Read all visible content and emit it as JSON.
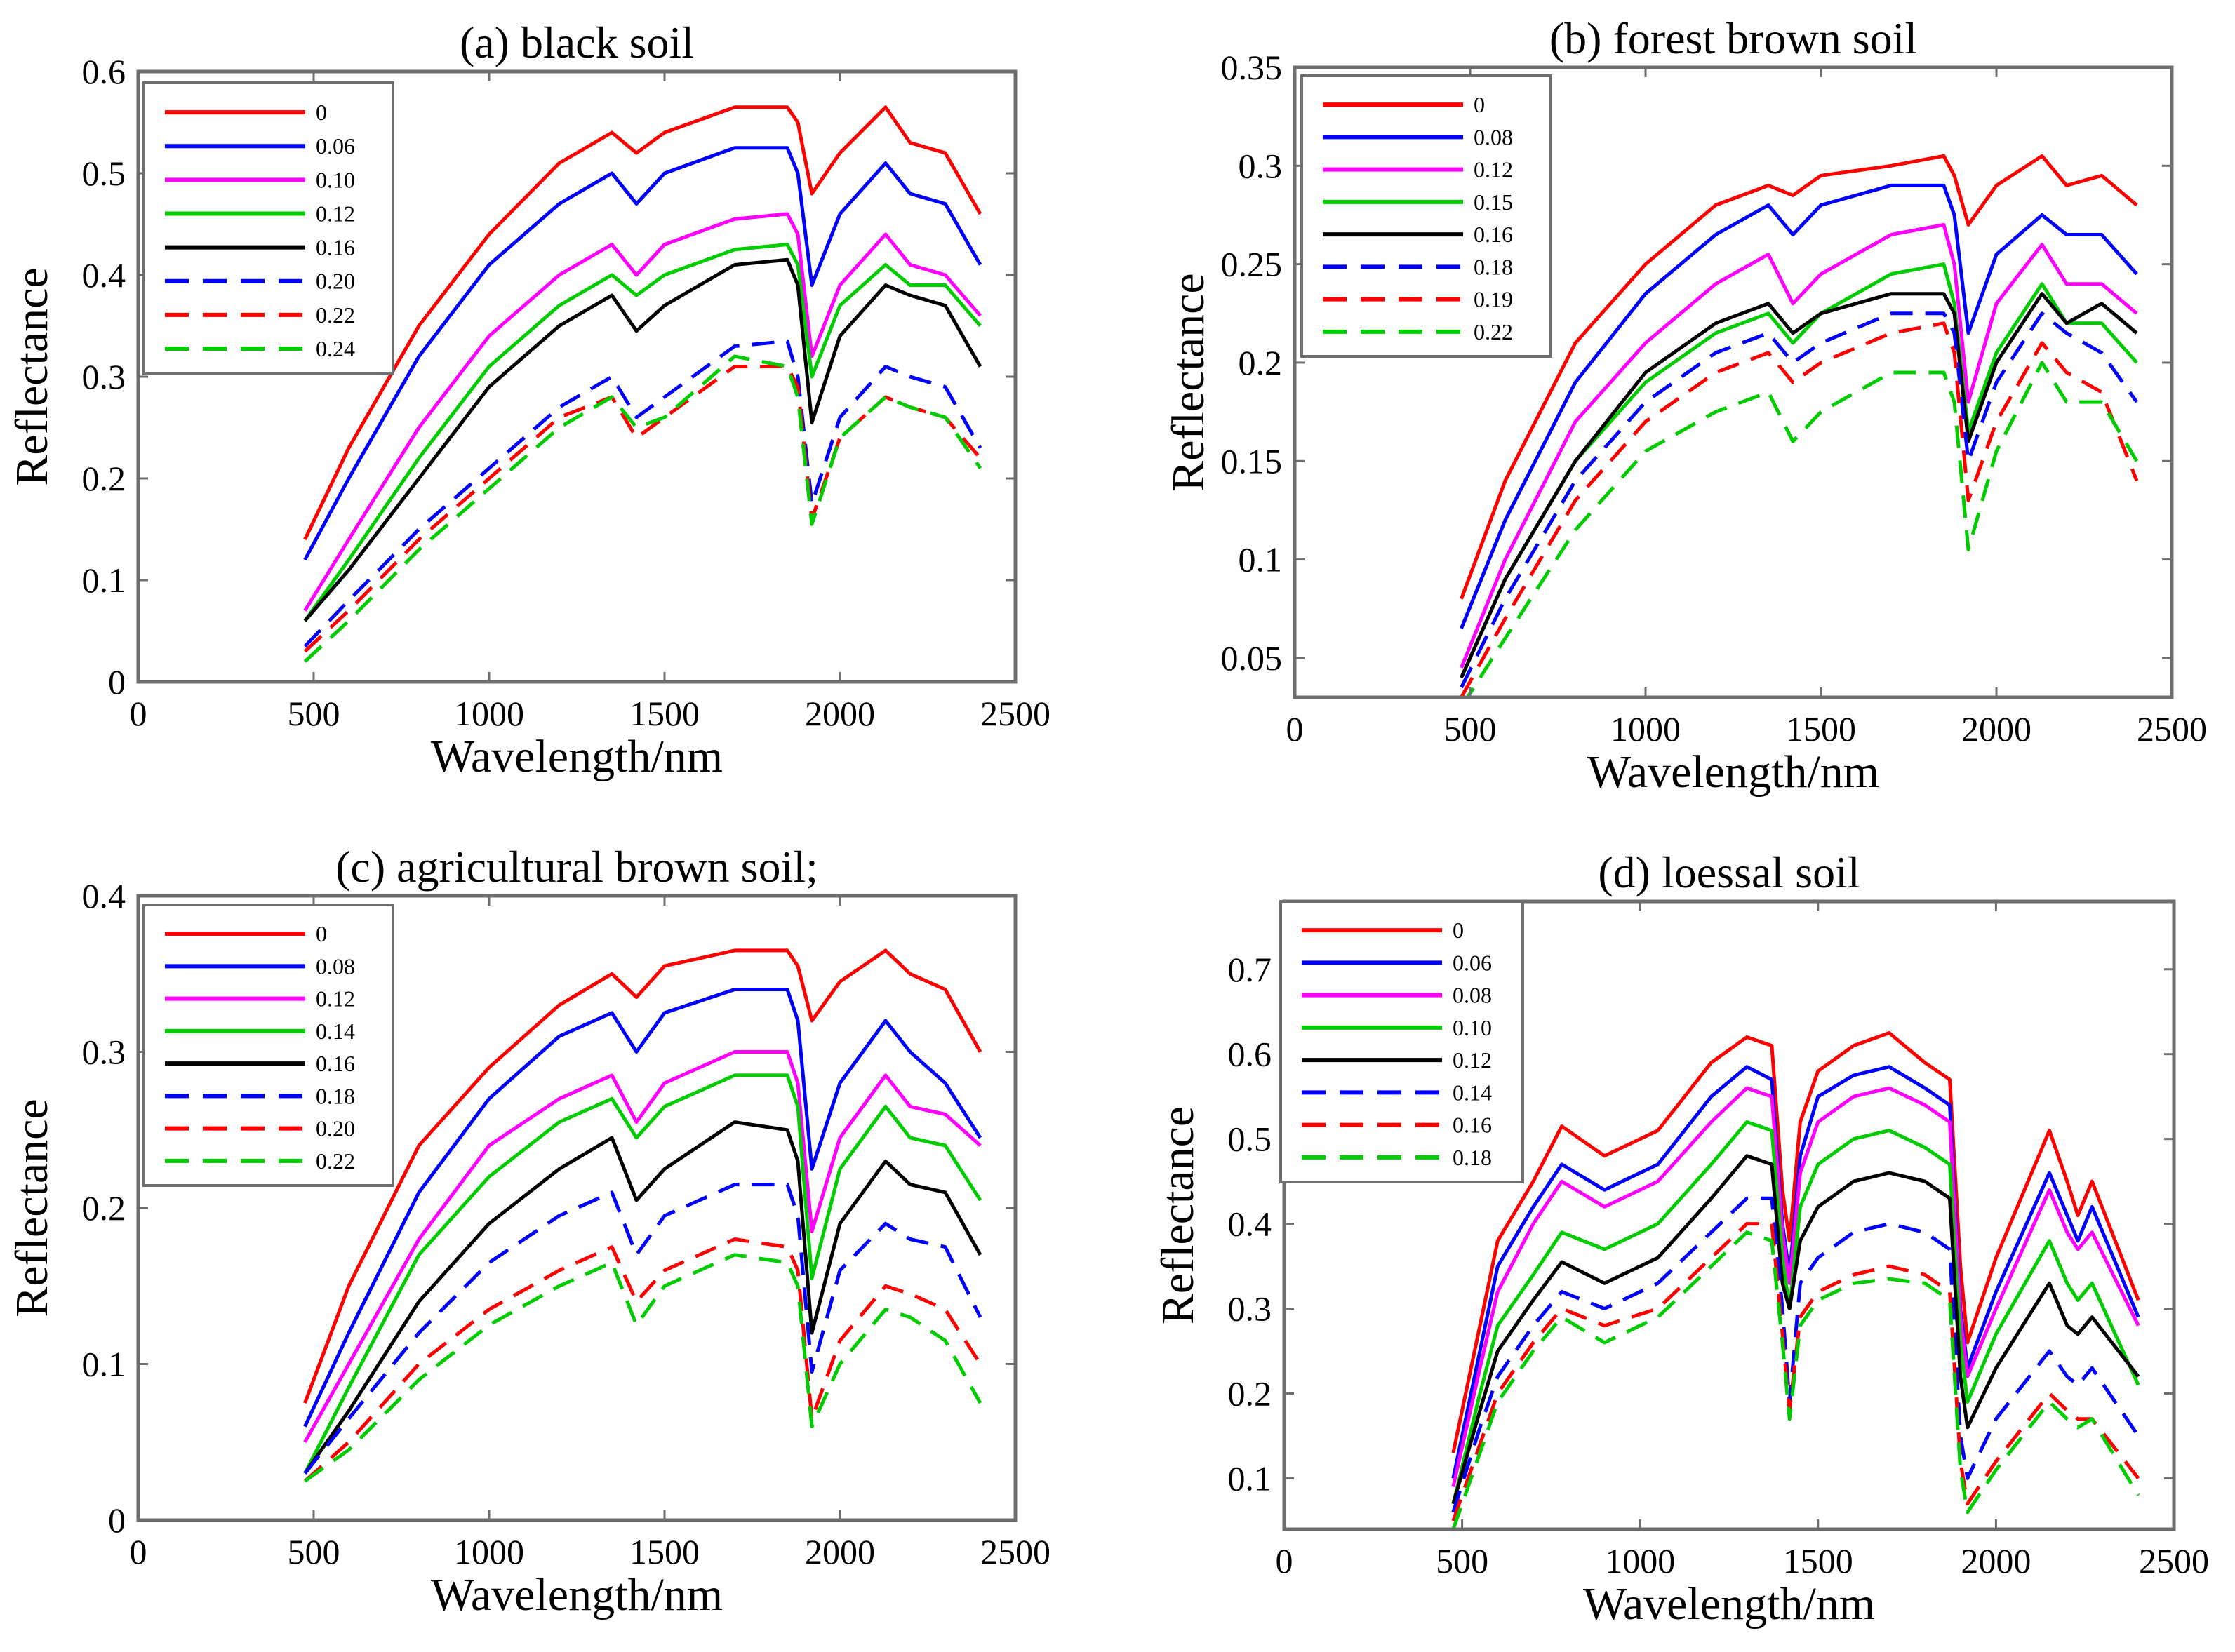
{
  "chart_data": [
    {
      "type": "line",
      "title": "(a) black soil",
      "xlabel": "Wavelength/nm",
      "ylabel": "Reflectance",
      "xlim": [
        0,
        2500
      ],
      "ylim": [
        0,
        0.6
      ],
      "xticks": [
        0,
        500,
        1000,
        1500,
        2000,
        2500
      ],
      "xtick_labels": [
        "0",
        "500",
        "1000",
        "1500",
        "2000",
        "2500"
      ],
      "yticks": [
        0,
        0.1,
        0.2,
        0.3,
        0.4,
        0.5,
        0.6
      ],
      "ytick_labels": [
        "0",
        "0.1",
        "0.2",
        "0.3",
        "0.4",
        "0.5",
        "0.6"
      ],
      "legend_position": "top-left",
      "x": [
        475,
        600,
        800,
        1000,
        1200,
        1350,
        1420,
        1500,
        1700,
        1850,
        1880,
        1920,
        2000,
        2130,
        2200,
        2300,
        2400
      ],
      "series": [
        {
          "name": "0",
          "color": "#ff0000",
          "style": "solid",
          "values": [
            0.14,
            0.23,
            0.35,
            0.44,
            0.51,
            0.54,
            0.52,
            0.54,
            0.565,
            0.565,
            0.55,
            0.48,
            0.52,
            0.565,
            0.53,
            0.52,
            0.46
          ]
        },
        {
          "name": "0.06",
          "color": "#0000ff",
          "style": "solid",
          "values": [
            0.12,
            0.2,
            0.32,
            0.41,
            0.47,
            0.5,
            0.47,
            0.5,
            0.525,
            0.525,
            0.5,
            0.39,
            0.46,
            0.51,
            0.48,
            0.47,
            0.41
          ]
        },
        {
          "name": "0.10",
          "color": "#ff00ff",
          "style": "solid",
          "values": [
            0.07,
            0.14,
            0.25,
            0.34,
            0.4,
            0.43,
            0.4,
            0.43,
            0.455,
            0.46,
            0.44,
            0.32,
            0.39,
            0.44,
            0.41,
            0.4,
            0.36
          ]
        },
        {
          "name": "0.12",
          "color": "#00cc00",
          "style": "solid",
          "values": [
            0.06,
            0.12,
            0.22,
            0.31,
            0.37,
            0.4,
            0.38,
            0.4,
            0.425,
            0.43,
            0.41,
            0.3,
            0.37,
            0.41,
            0.39,
            0.39,
            0.35
          ]
        },
        {
          "name": "0.16",
          "color": "#000000",
          "style": "solid",
          "values": [
            0.06,
            0.11,
            0.2,
            0.29,
            0.35,
            0.38,
            0.345,
            0.37,
            0.41,
            0.415,
            0.39,
            0.255,
            0.34,
            0.39,
            0.38,
            0.37,
            0.31
          ]
        },
        {
          "name": "0.20",
          "color": "#0000ff",
          "style": "dashed",
          "values": [
            0.035,
            0.08,
            0.15,
            0.21,
            0.27,
            0.3,
            0.26,
            0.28,
            0.33,
            0.335,
            0.3,
            0.175,
            0.26,
            0.31,
            0.3,
            0.29,
            0.23
          ]
        },
        {
          "name": "0.22",
          "color": "#ff0000",
          "style": "dashed",
          "values": [
            0.03,
            0.07,
            0.14,
            0.2,
            0.26,
            0.28,
            0.24,
            0.26,
            0.31,
            0.31,
            0.29,
            0.16,
            0.24,
            0.28,
            0.27,
            0.26,
            0.22
          ]
        },
        {
          "name": "0.24",
          "color": "#00cc00",
          "style": "dashed",
          "values": [
            0.02,
            0.06,
            0.13,
            0.19,
            0.25,
            0.28,
            0.25,
            0.26,
            0.32,
            0.31,
            0.28,
            0.155,
            0.24,
            0.28,
            0.27,
            0.26,
            0.21
          ]
        }
      ]
    },
    {
      "type": "line",
      "title": "(b) forest brown soil",
      "xlabel": "Wavelength/nm",
      "ylabel": "Reflectance",
      "xlim": [
        0,
        2500
      ],
      "ylim": [
        0.03,
        0.35
      ],
      "xticks": [
        0,
        500,
        1000,
        1500,
        2000,
        2500
      ],
      "xtick_labels": [
        "0",
        "500",
        "1000",
        "1500",
        "2000",
        "2500"
      ],
      "yticks": [
        0.05,
        0.1,
        0.15,
        0.2,
        0.25,
        0.3,
        0.35
      ],
      "ytick_labels": [
        "0.05",
        "0.1",
        "0.15",
        "0.2",
        "0.25",
        "0.3",
        "0.35"
      ],
      "legend_position": "top-left",
      "x": [
        475,
        600,
        800,
        1000,
        1200,
        1350,
        1420,
        1500,
        1700,
        1850,
        1880,
        1920,
        2000,
        2130,
        2200,
        2300,
        2400
      ],
      "series": [
        {
          "name": "0",
          "color": "#ff0000",
          "style": "solid",
          "values": [
            0.08,
            0.14,
            0.21,
            0.25,
            0.28,
            0.29,
            0.285,
            0.295,
            0.3,
            0.305,
            0.295,
            0.27,
            0.29,
            0.305,
            0.29,
            0.295,
            0.28
          ]
        },
        {
          "name": "0.08",
          "color": "#0000ff",
          "style": "solid",
          "values": [
            0.065,
            0.12,
            0.19,
            0.235,
            0.265,
            0.28,
            0.265,
            0.28,
            0.29,
            0.29,
            0.275,
            0.215,
            0.255,
            0.275,
            0.265,
            0.265,
            0.245
          ]
        },
        {
          "name": "0.12",
          "color": "#ff00ff",
          "style": "solid",
          "values": [
            0.045,
            0.1,
            0.17,
            0.21,
            0.24,
            0.255,
            0.23,
            0.245,
            0.265,
            0.27,
            0.25,
            0.18,
            0.23,
            0.26,
            0.24,
            0.24,
            0.225
          ]
        },
        {
          "name": "0.15",
          "color": "#00cc00",
          "style": "solid",
          "values": [
            0.04,
            0.09,
            0.15,
            0.19,
            0.215,
            0.225,
            0.21,
            0.225,
            0.245,
            0.25,
            0.23,
            0.165,
            0.205,
            0.24,
            0.22,
            0.22,
            0.2
          ]
        },
        {
          "name": "0.16",
          "color": "#000000",
          "style": "solid",
          "values": [
            0.04,
            0.09,
            0.15,
            0.195,
            0.22,
            0.23,
            0.215,
            0.225,
            0.235,
            0.235,
            0.225,
            0.16,
            0.2,
            0.235,
            0.22,
            0.23,
            0.215
          ]
        },
        {
          "name": "0.18",
          "color": "#0000ff",
          "style": "dashed",
          "values": [
            0.035,
            0.08,
            0.14,
            0.18,
            0.205,
            0.215,
            0.2,
            0.21,
            0.225,
            0.225,
            0.215,
            0.15,
            0.19,
            0.225,
            0.215,
            0.205,
            0.18
          ]
        },
        {
          "name": "0.19",
          "color": "#ff0000",
          "style": "dashed",
          "values": [
            0.03,
            0.07,
            0.13,
            0.17,
            0.195,
            0.205,
            0.19,
            0.2,
            0.215,
            0.22,
            0.205,
            0.13,
            0.17,
            0.21,
            0.195,
            0.185,
            0.14
          ]
        },
        {
          "name": "0.22",
          "color": "#00cc00",
          "style": "dashed",
          "values": [
            0.025,
            0.06,
            0.115,
            0.155,
            0.175,
            0.185,
            0.16,
            0.175,
            0.195,
            0.195,
            0.18,
            0.105,
            0.155,
            0.2,
            0.18,
            0.18,
            0.15
          ]
        }
      ]
    },
    {
      "type": "line",
      "title": "(c) agricultural brown soil;",
      "xlabel": "Wavelength/nm",
      "ylabel": "Reflectance",
      "xlim": [
        0,
        2500
      ],
      "ylim": [
        0,
        0.4
      ],
      "xticks": [
        0,
        500,
        1000,
        1500,
        2000,
        2500
      ],
      "xtick_labels": [
        "0",
        "500",
        "1000",
        "1500",
        "2000",
        "2500"
      ],
      "yticks": [
        0,
        0.1,
        0.2,
        0.3,
        0.4
      ],
      "ytick_labels": [
        "0",
        "0.1",
        "0.2",
        "0.3",
        "0.4"
      ],
      "legend_position": "top-left",
      "x": [
        475,
        600,
        800,
        1000,
        1200,
        1350,
        1420,
        1500,
        1700,
        1850,
        1880,
        1920,
        2000,
        2130,
        2200,
        2300,
        2400
      ],
      "series": [
        {
          "name": "0",
          "color": "#ff0000",
          "style": "solid",
          "values": [
            0.075,
            0.15,
            0.24,
            0.29,
            0.33,
            0.35,
            0.335,
            0.355,
            0.365,
            0.365,
            0.355,
            0.32,
            0.345,
            0.365,
            0.35,
            0.34,
            0.3
          ]
        },
        {
          "name": "0.08",
          "color": "#0000ff",
          "style": "solid",
          "values": [
            0.06,
            0.12,
            0.21,
            0.27,
            0.31,
            0.325,
            0.3,
            0.325,
            0.34,
            0.34,
            0.32,
            0.225,
            0.28,
            0.32,
            0.3,
            0.28,
            0.245
          ]
        },
        {
          "name": "0.12",
          "color": "#ff00ff",
          "style": "solid",
          "values": [
            0.05,
            0.1,
            0.18,
            0.24,
            0.27,
            0.285,
            0.255,
            0.28,
            0.3,
            0.3,
            0.28,
            0.185,
            0.245,
            0.285,
            0.265,
            0.26,
            0.24
          ]
        },
        {
          "name": "0.14",
          "color": "#00cc00",
          "style": "solid",
          "values": [
            0.03,
            0.085,
            0.17,
            0.22,
            0.255,
            0.27,
            0.245,
            0.265,
            0.285,
            0.285,
            0.265,
            0.155,
            0.225,
            0.265,
            0.245,
            0.24,
            0.205
          ]
        },
        {
          "name": "0.16",
          "color": "#000000",
          "style": "solid",
          "values": [
            0.03,
            0.07,
            0.14,
            0.19,
            0.225,
            0.245,
            0.205,
            0.225,
            0.255,
            0.25,
            0.23,
            0.12,
            0.19,
            0.23,
            0.215,
            0.21,
            0.17
          ]
        },
        {
          "name": "0.18",
          "color": "#0000ff",
          "style": "dashed",
          "values": [
            0.03,
            0.065,
            0.12,
            0.165,
            0.195,
            0.21,
            0.17,
            0.195,
            0.215,
            0.215,
            0.195,
            0.095,
            0.16,
            0.19,
            0.18,
            0.175,
            0.13
          ]
        },
        {
          "name": "0.20",
          "color": "#ff0000",
          "style": "dashed",
          "values": [
            0.025,
            0.05,
            0.1,
            0.135,
            0.16,
            0.175,
            0.14,
            0.16,
            0.18,
            0.175,
            0.16,
            0.065,
            0.115,
            0.15,
            0.145,
            0.135,
            0.1
          ]
        },
        {
          "name": "0.22",
          "color": "#00cc00",
          "style": "dashed",
          "values": [
            0.025,
            0.045,
            0.09,
            0.125,
            0.15,
            0.165,
            0.125,
            0.15,
            0.17,
            0.165,
            0.15,
            0.06,
            0.1,
            0.135,
            0.13,
            0.115,
            0.075
          ]
        }
      ]
    },
    {
      "type": "line",
      "title": "(d) loessal soil",
      "xlabel": "Wavelength/nm",
      "ylabel": "Reflectance",
      "xlim": [
        0,
        2500
      ],
      "ylim": [
        0.04,
        0.78
      ],
      "xticks": [
        0,
        500,
        1000,
        1500,
        2000,
        2500
      ],
      "xtick_labels": [
        "0",
        "500",
        "1000",
        "1500",
        "2000",
        "2500"
      ],
      "yticks": [
        0.1,
        0.2,
        0.3,
        0.4,
        0.5,
        0.6,
        0.7
      ],
      "ytick_labels": [
        "0.1",
        "0.2",
        "0.3",
        "0.4",
        "0.5",
        "0.6",
        "0.7"
      ],
      "legend_position": "top-left",
      "x": [
        475,
        550,
        600,
        700,
        780,
        900,
        1050,
        1200,
        1300,
        1370,
        1400,
        1420,
        1450,
        1500,
        1600,
        1700,
        1800,
        1870,
        1900,
        1920,
        2000,
        2150,
        2200,
        2230,
        2270,
        2400
      ],
      "series": [
        {
          "name": "0",
          "color": "#ff0000",
          "style": "solid",
          "values": [
            0.13,
            0.28,
            0.38,
            0.45,
            0.515,
            0.48,
            0.51,
            0.59,
            0.62,
            0.61,
            0.44,
            0.38,
            0.52,
            0.58,
            0.61,
            0.625,
            0.59,
            0.57,
            0.35,
            0.26,
            0.36,
            0.51,
            0.45,
            0.41,
            0.45,
            0.31
          ]
        },
        {
          "name": "0.06",
          "color": "#0000ff",
          "style": "solid",
          "values": [
            0.1,
            0.25,
            0.35,
            0.42,
            0.47,
            0.44,
            0.47,
            0.55,
            0.585,
            0.57,
            0.4,
            0.34,
            0.48,
            0.55,
            0.575,
            0.585,
            0.56,
            0.54,
            0.3,
            0.23,
            0.32,
            0.46,
            0.41,
            0.38,
            0.42,
            0.29
          ]
        },
        {
          "name": "0.08",
          "color": "#ff00ff",
          "style": "solid",
          "values": [
            0.09,
            0.23,
            0.32,
            0.4,
            0.45,
            0.42,
            0.45,
            0.52,
            0.56,
            0.55,
            0.39,
            0.33,
            0.46,
            0.52,
            0.55,
            0.56,
            0.54,
            0.52,
            0.29,
            0.22,
            0.3,
            0.44,
            0.39,
            0.37,
            0.39,
            0.28
          ]
        },
        {
          "name": "0.10",
          "color": "#00cc00",
          "style": "solid",
          "values": [
            0.07,
            0.2,
            0.28,
            0.34,
            0.39,
            0.37,
            0.4,
            0.47,
            0.52,
            0.51,
            0.36,
            0.3,
            0.42,
            0.47,
            0.5,
            0.51,
            0.49,
            0.47,
            0.26,
            0.19,
            0.27,
            0.38,
            0.33,
            0.31,
            0.33,
            0.21
          ]
        },
        {
          "name": "0.12",
          "color": "#000000",
          "style": "solid",
          "values": [
            0.07,
            0.18,
            0.25,
            0.31,
            0.355,
            0.33,
            0.36,
            0.43,
            0.48,
            0.47,
            0.33,
            0.3,
            0.38,
            0.42,
            0.45,
            0.46,
            0.45,
            0.43,
            0.22,
            0.16,
            0.23,
            0.33,
            0.28,
            0.27,
            0.29,
            0.22
          ]
        },
        {
          "name": "0.14",
          "color": "#0000ff",
          "style": "dashed",
          "values": [
            0.06,
            0.16,
            0.22,
            0.28,
            0.32,
            0.3,
            0.33,
            0.39,
            0.43,
            0.43,
            0.3,
            0.19,
            0.33,
            0.36,
            0.39,
            0.4,
            0.39,
            0.37,
            0.15,
            0.1,
            0.17,
            0.25,
            0.22,
            0.21,
            0.23,
            0.15
          ]
        },
        {
          "name": "0.16",
          "color": "#ff0000",
          "style": "dashed",
          "values": [
            0.05,
            0.14,
            0.2,
            0.26,
            0.3,
            0.28,
            0.3,
            0.36,
            0.4,
            0.4,
            0.27,
            0.18,
            0.29,
            0.32,
            0.34,
            0.35,
            0.34,
            0.32,
            0.12,
            0.07,
            0.12,
            0.2,
            0.18,
            0.17,
            0.17,
            0.1
          ]
        },
        {
          "name": "0.18",
          "color": "#00cc00",
          "style": "dashed",
          "values": [
            0.04,
            0.13,
            0.19,
            0.25,
            0.29,
            0.26,
            0.29,
            0.35,
            0.39,
            0.38,
            0.26,
            0.17,
            0.28,
            0.31,
            0.33,
            0.335,
            0.33,
            0.31,
            0.11,
            0.06,
            0.11,
            0.19,
            0.17,
            0.16,
            0.17,
            0.08
          ]
        }
      ]
    }
  ]
}
